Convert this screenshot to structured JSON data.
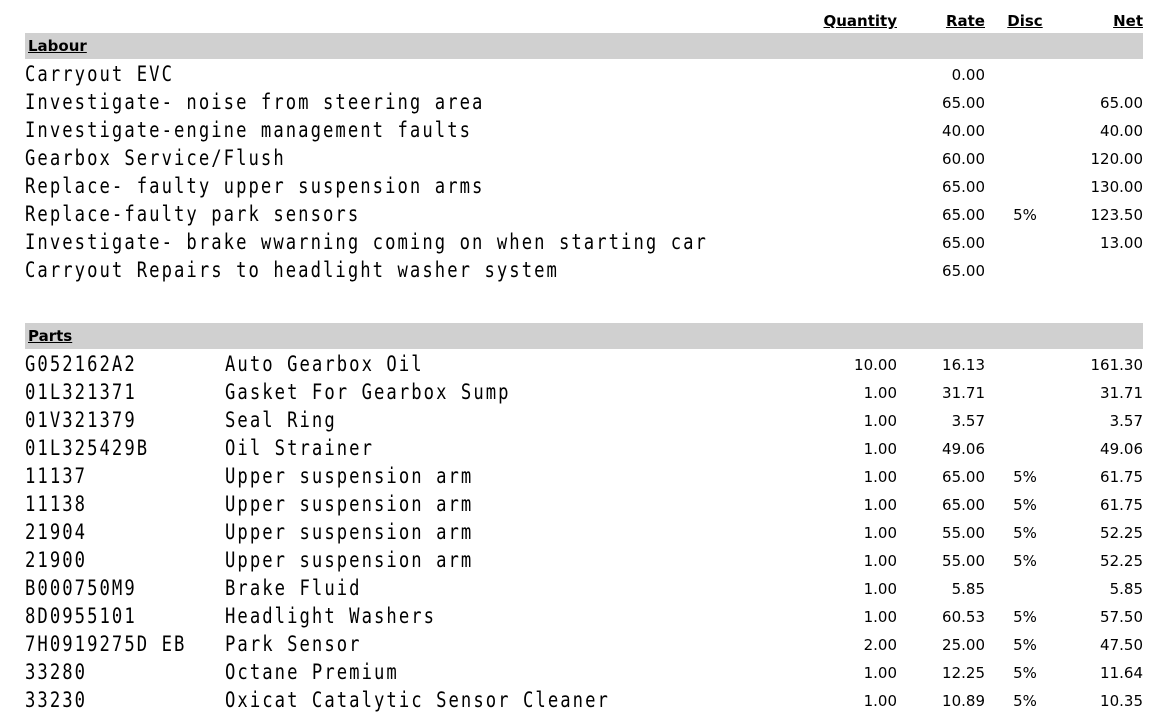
{
  "colors": {
    "section_bar": "#d0d0d0",
    "text": "#000000",
    "background": "#ffffff"
  },
  "table": {
    "columns": [
      {
        "key": "quantity",
        "label": "Quantity"
      },
      {
        "key": "rate",
        "label": "Rate"
      },
      {
        "key": "disc",
        "label": "Disc"
      },
      {
        "key": "net",
        "label": "Net"
      }
    ],
    "sections": [
      {
        "title": "Labour",
        "rows": [
          {
            "description": "Carryout EVC",
            "quantity": "",
            "rate": "0.00",
            "disc": "",
            "net": ""
          },
          {
            "description": "Investigate- noise from steering area",
            "quantity": "",
            "rate": "65.00",
            "disc": "",
            "net": "65.00"
          },
          {
            "description": "Investigate-engine management faults",
            "quantity": "",
            "rate": "40.00",
            "disc": "",
            "net": "40.00"
          },
          {
            "description": "Gearbox Service/Flush",
            "quantity": "",
            "rate": "60.00",
            "disc": "",
            "net": "120.00"
          },
          {
            "description": "Replace- faulty upper suspension arms",
            "quantity": "",
            "rate": "65.00",
            "disc": "",
            "net": "130.00"
          },
          {
            "description": "Replace-faulty park sensors",
            "quantity": "",
            "rate": "65.00",
            "disc": "5%",
            "net": "123.50"
          },
          {
            "description": "Investigate- brake wwarning coming on when starting car",
            "quantity": "",
            "rate": "65.00",
            "disc": "",
            "net": "13.00"
          },
          {
            "description": "Carryout Repairs to headlight washer system",
            "quantity": "",
            "rate": "65.00",
            "disc": "",
            "net": ""
          }
        ]
      },
      {
        "title": "Parts",
        "rows": [
          {
            "part_number": "G052162A2",
            "description": "Auto Gearbox Oil",
            "quantity": "10.00",
            "rate": "16.13",
            "disc": "",
            "net": "161.30"
          },
          {
            "part_number": "01L321371",
            "description": "Gasket For Gearbox Sump",
            "quantity": "1.00",
            "rate": "31.71",
            "disc": "",
            "net": "31.71"
          },
          {
            "part_number": "01V321379",
            "description": "Seal Ring",
            "quantity": "1.00",
            "rate": "3.57",
            "disc": "",
            "net": "3.57"
          },
          {
            "part_number": "01L325429B",
            "description": "Oil Strainer",
            "quantity": "1.00",
            "rate": "49.06",
            "disc": "",
            "net": "49.06"
          },
          {
            "part_number": "11137",
            "description": "Upper suspension arm",
            "quantity": "1.00",
            "rate": "65.00",
            "disc": "5%",
            "net": "61.75"
          },
          {
            "part_number": "11138",
            "description": "Upper suspension arm",
            "quantity": "1.00",
            "rate": "65.00",
            "disc": "5%",
            "net": "61.75"
          },
          {
            "part_number": "21904",
            "description": "Upper suspension arm",
            "quantity": "1.00",
            "rate": "55.00",
            "disc": "5%",
            "net": "52.25"
          },
          {
            "part_number": "21900",
            "description": "Upper suspension arm",
            "quantity": "1.00",
            "rate": "55.00",
            "disc": "5%",
            "net": "52.25"
          },
          {
            "part_number": "B000750M9",
            "description": "Brake Fluid",
            "quantity": "1.00",
            "rate": "5.85",
            "disc": "",
            "net": "5.85"
          },
          {
            "part_number": "8D0955101",
            "description": "Headlight Washers",
            "quantity": "1.00",
            "rate": "60.53",
            "disc": "5%",
            "net": "57.50"
          },
          {
            "part_number": "7H0919275D EB",
            "description": "Park Sensor",
            "quantity": "2.00",
            "rate": "25.00",
            "disc": "5%",
            "net": "47.50"
          },
          {
            "part_number": "33280",
            "description": "Octane Premium",
            "quantity": "1.00",
            "rate": "12.25",
            "disc": "5%",
            "net": "11.64"
          },
          {
            "part_number": "33230",
            "description": "Oxicat Catalytic Sensor Cleaner",
            "quantity": "1.00",
            "rate": "10.89",
            "disc": "5%",
            "net": "10.35"
          }
        ]
      }
    ]
  }
}
